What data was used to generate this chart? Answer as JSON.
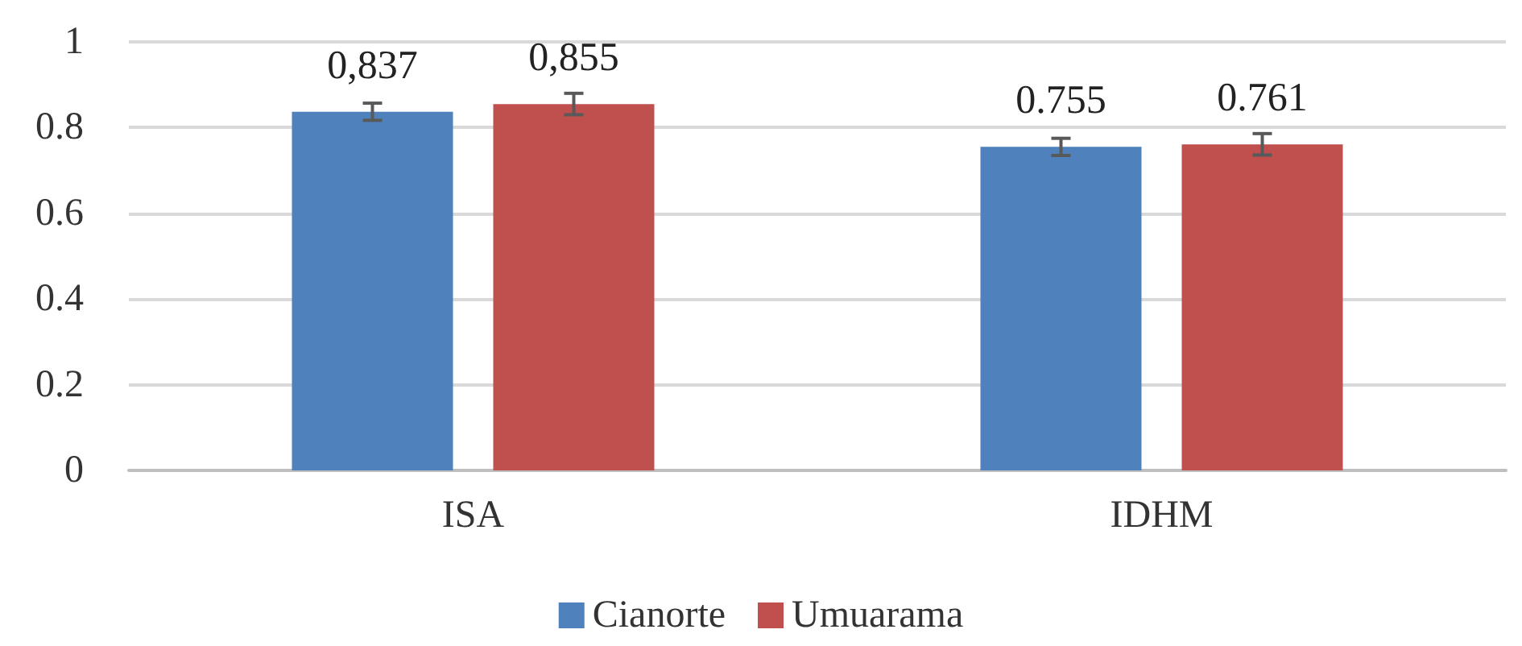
{
  "chart_data": {
    "type": "bar",
    "categories": [
      "ISA",
      "IDHM"
    ],
    "series": [
      {
        "name": "Cianorte",
        "color": "#4f81bd",
        "values": [
          0.837,
          0.755
        ],
        "errors": [
          0.02,
          0.02
        ],
        "value_labels": [
          "0,837",
          "0.755"
        ]
      },
      {
        "name": "Umuarama",
        "color": "#c0504d",
        "values": [
          0.855,
          0.761
        ],
        "errors": [
          0.025,
          0.025
        ],
        "value_labels": [
          "0,855",
          "0.761"
        ]
      }
    ],
    "ylim": [
      0,
      1
    ],
    "yticks": [
      0,
      0.2,
      0.4,
      0.6,
      0.8,
      1
    ],
    "grid": "y",
    "legend": "bottom"
  }
}
